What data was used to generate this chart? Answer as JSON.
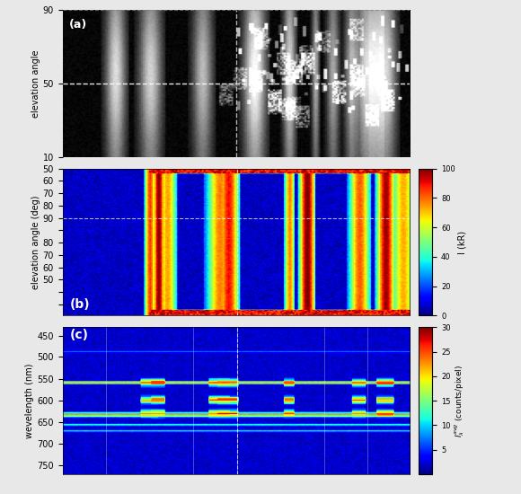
{
  "panel_a": {
    "label": "(a)",
    "yticks": [
      10,
      50,
      90
    ],
    "ylabel": "elevation angle",
    "colormap": "gray"
  },
  "panel_b": {
    "label": "(b)",
    "ylabel": "elevation angle (deg)",
    "colorbar_label": "I (kR)",
    "colorbar_ticks": [
      0,
      20,
      40,
      60,
      80,
      100
    ],
    "vmin": 0,
    "vmax": 100,
    "colormap": "jet"
  },
  "panel_c": {
    "label": "(c)",
    "yticks": [
      450,
      500,
      550,
      600,
      650,
      700,
      750
    ],
    "ylabel": "wevelength (nm)",
    "colorbar_ticks": [
      5,
      10,
      15,
      20,
      25,
      30
    ],
    "vmin": 0,
    "vmax": 30,
    "colormap": "jet"
  },
  "n_time_steps": 200,
  "background_color": "#e8e8e8"
}
